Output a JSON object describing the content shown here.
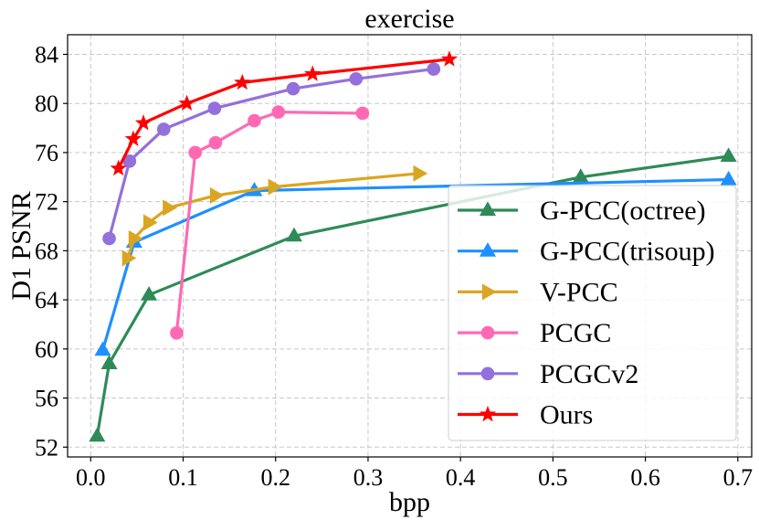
{
  "chart_data": {
    "type": "line",
    "title": "exercise",
    "xlabel": "bpp",
    "ylabel": "D1 PSNR",
    "xlim": [
      -0.025,
      0.715
    ],
    "ylim": [
      51.2,
      85.6
    ],
    "xticks": [
      0.0,
      0.1,
      0.2,
      0.3,
      0.4,
      0.5,
      0.6,
      0.7
    ],
    "xtick_labels": [
      "0.0",
      "0.1",
      "0.2",
      "0.3",
      "0.4",
      "0.5",
      "0.6",
      "0.7"
    ],
    "yticks": [
      52,
      56,
      60,
      64,
      68,
      72,
      76,
      80,
      84
    ],
    "ytick_labels": [
      "52",
      "56",
      "60",
      "64",
      "68",
      "72",
      "76",
      "80",
      "84"
    ],
    "grid": true,
    "legend_position": "lower-right",
    "series": [
      {
        "name": "G-PCC(octree)",
        "color": "#2E8B57",
        "marker": "triangle-up",
        "x": [
          0.007,
          0.02,
          0.063,
          0.22,
          0.53,
          0.69
        ],
        "y": [
          52.9,
          58.8,
          64.4,
          69.2,
          74.0,
          75.7
        ]
      },
      {
        "name": "G-PCC(trisoup)",
        "color": "#1E90FF",
        "marker": "triangle-up",
        "x": [
          0.013,
          0.047,
          0.177,
          0.69
        ],
        "y": [
          59.9,
          68.7,
          72.9,
          73.8
        ]
      },
      {
        "name": "V-PCC",
        "color": "#DAA520",
        "marker": "triangle-right",
        "x": [
          0.04,
          0.047,
          0.063,
          0.084,
          0.135,
          0.198,
          0.355
        ],
        "y": [
          67.4,
          69.0,
          70.3,
          71.5,
          72.5,
          73.2,
          74.3
        ]
      },
      {
        "name": "PCGC",
        "color": "#FF69B4",
        "marker": "circle",
        "x": [
          0.093,
          0.113,
          0.135,
          0.177,
          0.203,
          0.294
        ],
        "y": [
          61.3,
          76.0,
          76.8,
          78.6,
          79.3,
          79.2
        ]
      },
      {
        "name": "PCGCv2",
        "color": "#9370DB",
        "marker": "circle",
        "x": [
          0.02,
          0.042,
          0.079,
          0.134,
          0.219,
          0.287,
          0.371
        ],
        "y": [
          69.0,
          75.3,
          77.9,
          79.6,
          81.2,
          82.0,
          82.8
        ]
      },
      {
        "name": "Ours",
        "color": "#FF0000",
        "marker": "star",
        "x": [
          0.03,
          0.046,
          0.057,
          0.104,
          0.164,
          0.24,
          0.388
        ],
        "y": [
          74.7,
          77.1,
          78.4,
          80.0,
          81.7,
          82.4,
          83.6
        ]
      }
    ]
  }
}
